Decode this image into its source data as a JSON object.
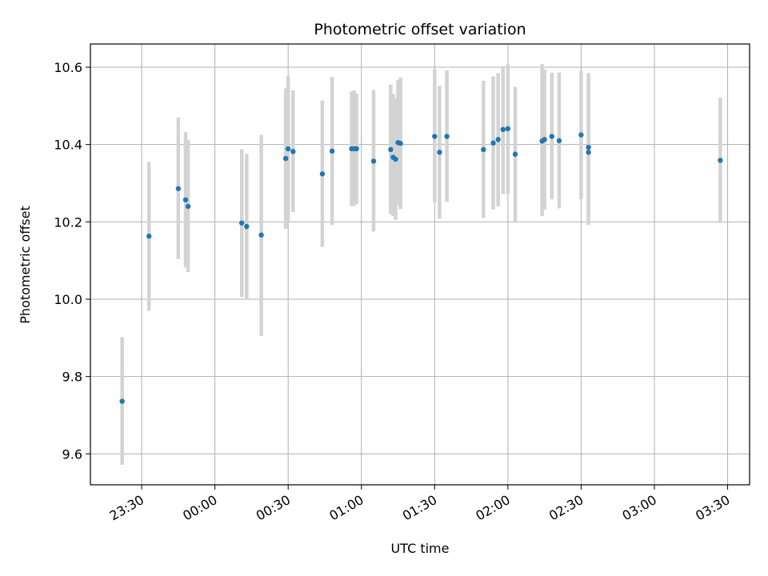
{
  "chart_data": {
    "type": "scatter",
    "title": "Photometric offset variation",
    "xlabel": "UTC time",
    "ylabel": "Photometric offset",
    "grid": true,
    "xlim": [
      "23:09",
      "03:39"
    ],
    "ylim": [
      9.52,
      10.66
    ],
    "x_ticks": [
      "23:30",
      "00:00",
      "00:30",
      "01:00",
      "01:30",
      "02:00",
      "02:30",
      "03:00",
      "03:30"
    ],
    "y_ticks": [
      "9.6",
      "9.8",
      "10.0",
      "10.2",
      "10.4",
      "10.6"
    ],
    "marker_color": "#1f77b4",
    "errorbar_color": "#d3d3d3",
    "points": [
      {
        "t": "23:22",
        "y": 9.736,
        "lo": 9.572,
        "hi": 9.902
      },
      {
        "t": "23:33",
        "y": 10.163,
        "lo": 9.97,
        "hi": 10.355
      },
      {
        "t": "23:45",
        "y": 10.286,
        "lo": 10.104,
        "hi": 10.47
      },
      {
        "t": "23:48",
        "y": 10.257,
        "lo": 10.082,
        "hi": 10.432
      },
      {
        "t": "23:49",
        "y": 10.24,
        "lo": 10.07,
        "hi": 10.412
      },
      {
        "t": "00:11",
        "y": 10.197,
        "lo": 10.006,
        "hi": 10.388
      },
      {
        "t": "00:13",
        "y": 10.188,
        "lo": 10.0,
        "hi": 10.376
      },
      {
        "t": "00:19",
        "y": 10.166,
        "lo": 9.905,
        "hi": 10.425
      },
      {
        "t": "00:29",
        "y": 10.364,
        "lo": 10.182,
        "hi": 10.545
      },
      {
        "t": "00:30",
        "y": 10.389,
        "lo": 10.199,
        "hi": 10.578
      },
      {
        "t": "00:32",
        "y": 10.382,
        "lo": 10.226,
        "hi": 10.54
      },
      {
        "t": "00:44",
        "y": 10.324,
        "lo": 10.135,
        "hi": 10.514
      },
      {
        "t": "00:48",
        "y": 10.383,
        "lo": 10.192,
        "hi": 10.575
      },
      {
        "t": "00:56",
        "y": 10.389,
        "lo": 10.241,
        "hi": 10.537
      },
      {
        "t": "00:57",
        "y": 10.389,
        "lo": 10.241,
        "hi": 10.54
      },
      {
        "t": "00:58",
        "y": 10.389,
        "lo": 10.246,
        "hi": 10.532
      },
      {
        "t": "01:05",
        "y": 10.357,
        "lo": 10.175,
        "hi": 10.541
      },
      {
        "t": "01:12",
        "y": 10.387,
        "lo": 10.22,
        "hi": 10.555
      },
      {
        "t": "01:13",
        "y": 10.367,
        "lo": 10.215,
        "hi": 10.531
      },
      {
        "t": "01:14",
        "y": 10.362,
        "lo": 10.205,
        "hi": 10.52
      },
      {
        "t": "01:15",
        "y": 10.405,
        "lo": 10.244,
        "hi": 10.567
      },
      {
        "t": "01:16",
        "y": 10.403,
        "lo": 10.233,
        "hi": 10.573
      },
      {
        "t": "01:30",
        "y": 10.421,
        "lo": 10.25,
        "hi": 10.595
      },
      {
        "t": "01:32",
        "y": 10.38,
        "lo": 10.208,
        "hi": 10.552
      },
      {
        "t": "01:35",
        "y": 10.421,
        "lo": 10.252,
        "hi": 10.592
      },
      {
        "t": "01:50",
        "y": 10.387,
        "lo": 10.21,
        "hi": 10.565
      },
      {
        "t": "01:54",
        "y": 10.404,
        "lo": 10.232,
        "hi": 10.576
      },
      {
        "t": "01:56",
        "y": 10.413,
        "lo": 10.24,
        "hi": 10.585
      },
      {
        "t": "01:58",
        "y": 10.439,
        "lo": 10.272,
        "hi": 10.603
      },
      {
        "t": "02:00",
        "y": 10.441,
        "lo": 10.272,
        "hi": 10.608
      },
      {
        "t": "02:03",
        "y": 10.375,
        "lo": 10.2,
        "hi": 10.549
      },
      {
        "t": "02:14",
        "y": 10.409,
        "lo": 10.215,
        "hi": 10.608
      },
      {
        "t": "02:15",
        "y": 10.413,
        "lo": 10.232,
        "hi": 10.594
      },
      {
        "t": "02:18",
        "y": 10.421,
        "lo": 10.258,
        "hi": 10.586
      },
      {
        "t": "02:21",
        "y": 10.41,
        "lo": 10.235,
        "hi": 10.586
      },
      {
        "t": "02:30",
        "y": 10.425,
        "lo": 10.259,
        "hi": 10.591
      },
      {
        "t": "02:33",
        "y": 10.393,
        "lo": 10.198,
        "hi": 10.585
      },
      {
        "t": "02:33",
        "y": 10.38,
        "lo": 10.192,
        "hi": 10.568
      },
      {
        "t": "03:27",
        "y": 10.359,
        "lo": 10.197,
        "hi": 10.521
      }
    ]
  }
}
